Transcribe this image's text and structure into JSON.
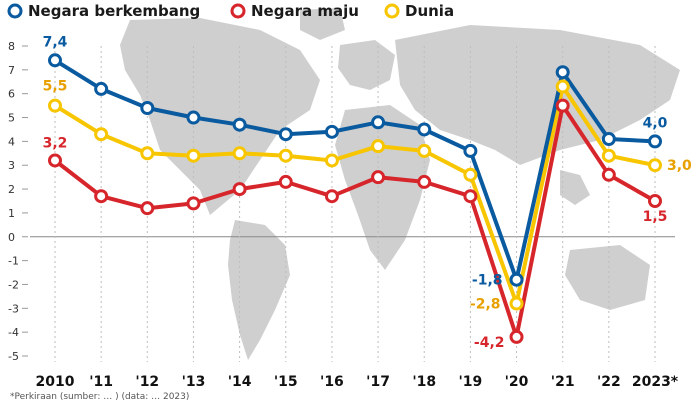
{
  "chart_data": {
    "type": "line",
    "title": "",
    "xlabel": "",
    "ylabel": "",
    "categories": [
      "2010",
      "'11",
      "'12",
      "'13",
      "'14",
      "'15",
      "'16",
      "'17",
      "'18",
      "'19",
      "'20",
      "'21",
      "'22",
      "2023*"
    ],
    "ylim": [
      -5,
      8
    ],
    "yticks": [
      "8",
      "7",
      "6",
      "5",
      "4",
      "3",
      "2",
      "1",
      "0",
      "-1",
      "-2",
      "-3",
      "-4",
      "-5"
    ],
    "ytick_values": [
      8,
      7,
      6,
      5,
      4,
      3,
      2,
      1,
      0,
      -1,
      -2,
      -3,
      -4,
      -5
    ],
    "legend_position": "top-left",
    "series": [
      {
        "name": "Negara berkembang",
        "color": "#0a5aa0",
        "values": [
          7.4,
          6.2,
          5.4,
          5.0,
          4.7,
          4.3,
          4.4,
          4.8,
          4.5,
          3.6,
          -1.8,
          6.9,
          4.1,
          4.0
        ],
        "labels": [
          {
            "index": 0,
            "text": "7,4"
          },
          {
            "index": 10,
            "text": "-1,8"
          },
          {
            "index": 13,
            "text": "4,0"
          }
        ]
      },
      {
        "name": "Negara maju",
        "color": "#d7262b",
        "values": [
          3.2,
          1.7,
          1.2,
          1.4,
          2.0,
          2.3,
          1.7,
          2.5,
          2.3,
          1.7,
          -4.2,
          5.5,
          2.6,
          1.5
        ],
        "labels": [
          {
            "index": 0,
            "text": "3,2"
          },
          {
            "index": 10,
            "text": "-4,2"
          },
          {
            "index": 13,
            "text": "1,5"
          }
        ]
      },
      {
        "name": "Dunia",
        "color": "#f7c600",
        "label_color": "#e8a000",
        "values": [
          5.5,
          4.3,
          3.5,
          3.4,
          3.5,
          3.4,
          3.2,
          3.8,
          3.6,
          2.6,
          -2.8,
          6.3,
          3.4,
          3.0
        ],
        "labels": [
          {
            "index": 0,
            "text": "5,5"
          },
          {
            "index": 10,
            "text": "-2,8"
          },
          {
            "index": 13,
            "text": "3,0"
          }
        ]
      }
    ],
    "footnote": "*Perkiraan (sumber: … ) (data: … 2023)"
  }
}
